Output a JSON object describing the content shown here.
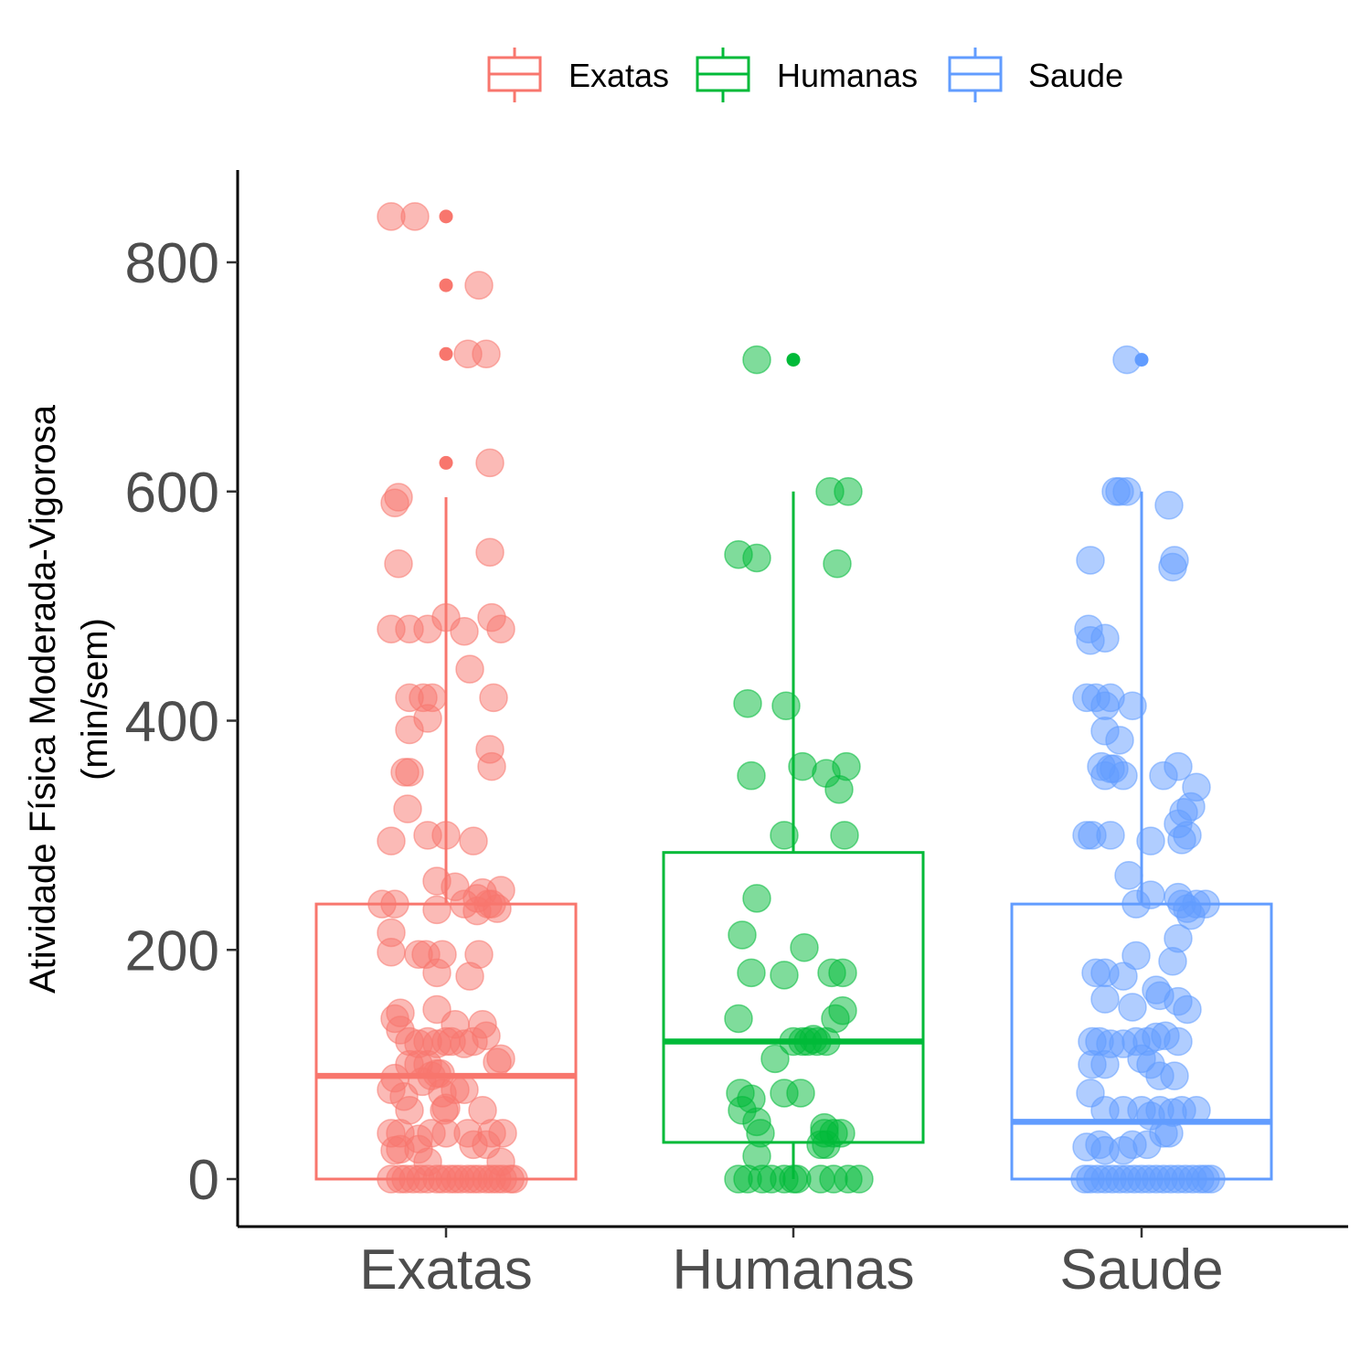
{
  "chart_data": {
    "type": "boxplot",
    "title": "",
    "xlabel": "",
    "ylabel_line1": "Atividade Física Moderada-Vigorosa",
    "ylabel_line2": "(min/sem)",
    "ylim": [
      -40,
      880
    ],
    "yticks": [
      0,
      200,
      400,
      600,
      800
    ],
    "categories": [
      "Exatas",
      "Humanas",
      "Saude"
    ],
    "legend": {
      "position": "top",
      "entries": [
        "Exatas",
        "Humanas",
        "Saude"
      ]
    },
    "grid": false,
    "colors": {
      "Exatas": "#F8766D",
      "Humanas": "#00BA38",
      "Saude": "#619CFF"
    },
    "boxes": [
      {
        "name": "Exatas",
        "min": 0,
        "q1": 0,
        "median": 90,
        "q3": 240,
        "max": 595,
        "outliers": [
          840,
          780,
          720,
          625
        ]
      },
      {
        "name": "Humanas",
        "min": 0,
        "q1": 32,
        "median": 120,
        "q3": 285,
        "max": 600,
        "outliers": [
          715
        ]
      },
      {
        "name": "Saude",
        "min": 0,
        "q1": 0,
        "median": 50,
        "q3": 240,
        "max": 600,
        "outliers": [
          715
        ]
      }
    ],
    "jitter": {
      "Exatas": [
        [
          -60,
          840
        ],
        [
          -34,
          840
        ],
        [
          36,
          780
        ],
        [
          44,
          720
        ],
        [
          24,
          720
        ],
        [
          48,
          625
        ],
        [
          -52,
          595
        ],
        [
          -56,
          590
        ],
        [
          -52,
          537
        ],
        [
          48,
          547
        ],
        [
          -60,
          480
        ],
        [
          -40,
          480
        ],
        [
          -20,
          480
        ],
        [
          0,
          490
        ],
        [
          20,
          478
        ],
        [
          50,
          490
        ],
        [
          60,
          480
        ],
        [
          -40,
          420
        ],
        [
          -25,
          420
        ],
        [
          -15,
          420
        ],
        [
          26,
          445
        ],
        [
          52,
          420
        ],
        [
          -40,
          392
        ],
        [
          -20,
          402
        ],
        [
          48,
          375
        ],
        [
          50,
          360
        ],
        [
          -40,
          355
        ],
        [
          -45,
          355
        ],
        [
          -42,
          323
        ],
        [
          -60,
          295
        ],
        [
          -20,
          300
        ],
        [
          0,
          300
        ],
        [
          30,
          295
        ],
        [
          -10,
          260
        ],
        [
          10,
          255
        ],
        [
          60,
          252
        ],
        [
          -56,
          240
        ],
        [
          -70,
          240
        ],
        [
          -10,
          235
        ],
        [
          20,
          240
        ],
        [
          34,
          245
        ],
        [
          46,
          240
        ],
        [
          56,
          236
        ],
        [
          40,
          250
        ],
        [
          50,
          240
        ],
        [
          34,
          234
        ],
        [
          -60,
          215
        ],
        [
          -60,
          198
        ],
        [
          -30,
          196
        ],
        [
          -22,
          196
        ],
        [
          -10,
          180
        ],
        [
          -4,
          196
        ],
        [
          36,
          196
        ],
        [
          26,
          177
        ],
        [
          -50,
          145
        ],
        [
          -10,
          148
        ],
        [
          -56,
          140
        ],
        [
          10,
          135
        ],
        [
          40,
          135
        ],
        [
          -50,
          130
        ],
        [
          -40,
          120
        ],
        [
          -30,
          118
        ],
        [
          -20,
          120
        ],
        [
          -10,
          118
        ],
        [
          0,
          120
        ],
        [
          6,
          120
        ],
        [
          20,
          118
        ],
        [
          -30,
          100
        ],
        [
          -40,
          100
        ],
        [
          -20,
          100
        ],
        [
          30,
          120
        ],
        [
          44,
          125
        ],
        [
          56,
          102
        ],
        [
          60,
          105
        ],
        [
          -10,
          92
        ],
        [
          -56,
          88
        ],
        [
          -60,
          78
        ],
        [
          -46,
          72
        ],
        [
          -26,
          85
        ],
        [
          -16,
          90
        ],
        [
          -6,
          92
        ],
        [
          -4,
          75
        ],
        [
          10,
          78
        ],
        [
          20,
          78
        ],
        [
          -40,
          60
        ],
        [
          -2,
          60
        ],
        [
          0,
          62
        ],
        [
          40,
          60
        ],
        [
          -60,
          40
        ],
        [
          -50,
          40
        ],
        [
          -30,
          35
        ],
        [
          -16,
          40
        ],
        [
          0,
          40
        ],
        [
          24,
          40
        ],
        [
          50,
          40
        ],
        [
          62,
          40
        ],
        [
          -50,
          26
        ],
        [
          -30,
          26
        ],
        [
          30,
          30
        ],
        [
          44,
          30
        ],
        [
          -56,
          25
        ],
        [
          60,
          15
        ],
        [
          -20,
          15
        ],
        [
          -60,
          0
        ],
        [
          -50,
          0
        ],
        [
          -44,
          0
        ],
        [
          -36,
          0
        ],
        [
          -28,
          0
        ],
        [
          -20,
          0
        ],
        [
          -10,
          0
        ],
        [
          -4,
          0
        ],
        [
          4,
          0
        ],
        [
          10,
          0
        ],
        [
          16,
          0
        ],
        [
          24,
          0
        ],
        [
          30,
          0
        ],
        [
          36,
          0
        ],
        [
          44,
          0
        ],
        [
          50,
          0
        ],
        [
          56,
          0
        ],
        [
          62,
          0
        ],
        [
          70,
          0
        ],
        [
          74,
          0
        ]
      ],
      "Humanas": [
        [
          -40,
          715
        ],
        [
          -60,
          545
        ],
        [
          60,
          600
        ],
        [
          48,
          537
        ],
        [
          40,
          600
        ],
        [
          -40,
          542
        ],
        [
          -50,
          415
        ],
        [
          -8,
          413
        ],
        [
          -46,
          352
        ],
        [
          10,
          360
        ],
        [
          36,
          354
        ],
        [
          50,
          340
        ],
        [
          58,
          360
        ],
        [
          -10,
          300
        ],
        [
          56,
          300
        ],
        [
          -40,
          245
        ],
        [
          -56,
          213
        ],
        [
          12,
          202
        ],
        [
          -46,
          180
        ],
        [
          -10,
          178
        ],
        [
          42,
          180
        ],
        [
          54,
          180
        ],
        [
          -60,
          140
        ],
        [
          46,
          140
        ],
        [
          54,
          147
        ],
        [
          -20,
          105
        ],
        [
          0,
          120
        ],
        [
          10,
          120
        ],
        [
          16,
          120
        ],
        [
          22,
          122
        ],
        [
          26,
          120
        ],
        [
          36,
          120
        ],
        [
          -58,
          75
        ],
        [
          -46,
          70
        ],
        [
          -10,
          75
        ],
        [
          8,
          75
        ],
        [
          -56,
          60
        ],
        [
          -40,
          50
        ],
        [
          -36,
          40
        ],
        [
          44,
          40
        ],
        [
          34,
          45
        ],
        [
          34,
          40
        ],
        [
          52,
          40
        ],
        [
          30,
          30
        ],
        [
          36,
          30
        ],
        [
          -40,
          20
        ],
        [
          -60,
          0
        ],
        [
          -50,
          0
        ],
        [
          -34,
          0
        ],
        [
          -24,
          0
        ],
        [
          -10,
          0
        ],
        [
          0,
          0
        ],
        [
          4,
          0
        ],
        [
          30,
          0
        ],
        [
          44,
          0
        ],
        [
          60,
          0
        ],
        [
          72,
          0
        ]
      ],
      "Saude": [
        [
          -16,
          715
        ],
        [
          -28,
          600
        ],
        [
          -24,
          600
        ],
        [
          -16,
          600
        ],
        [
          30,
          588
        ],
        [
          -56,
          540
        ],
        [
          36,
          540
        ],
        [
          34,
          534
        ],
        [
          -58,
          480
        ],
        [
          -56,
          470
        ],
        [
          -40,
          472
        ],
        [
          -60,
          420
        ],
        [
          -50,
          420
        ],
        [
          -40,
          413
        ],
        [
          -34,
          420
        ],
        [
          -10,
          413
        ],
        [
          -40,
          391
        ],
        [
          -24,
          383
        ],
        [
          -44,
          360
        ],
        [
          -40,
          352
        ],
        [
          -34,
          358
        ],
        [
          -30,
          358
        ],
        [
          -20,
          352
        ],
        [
          24,
          352
        ],
        [
          40,
          360
        ],
        [
          60,
          342
        ],
        [
          50,
          300
        ],
        [
          44,
          296
        ],
        [
          40,
          310
        ],
        [
          46,
          320
        ],
        [
          54,
          325
        ],
        [
          -60,
          300
        ],
        [
          -54,
          300
        ],
        [
          -34,
          300
        ],
        [
          10,
          295
        ],
        [
          -14,
          265
        ],
        [
          -6,
          240
        ],
        [
          10,
          248
        ],
        [
          40,
          246
        ],
        [
          44,
          240
        ],
        [
          50,
          236
        ],
        [
          60,
          240
        ],
        [
          70,
          240
        ],
        [
          54,
          230
        ],
        [
          40,
          210
        ],
        [
          34,
          190
        ],
        [
          -50,
          180
        ],
        [
          -40,
          180
        ],
        [
          -20,
          177
        ],
        [
          -6,
          195
        ],
        [
          16,
          165
        ],
        [
          20,
          160
        ],
        [
          40,
          155
        ],
        [
          50,
          148
        ],
        [
          -40,
          157
        ],
        [
          -10,
          150
        ],
        [
          -54,
          120
        ],
        [
          -46,
          120
        ],
        [
          -34,
          118
        ],
        [
          -20,
          118
        ],
        [
          -6,
          120
        ],
        [
          6,
          120
        ],
        [
          16,
          124
        ],
        [
          26,
          125
        ],
        [
          40,
          120
        ],
        [
          -54,
          100
        ],
        [
          -40,
          100
        ],
        [
          0,
          105
        ],
        [
          10,
          100
        ],
        [
          20,
          90
        ],
        [
          36,
          90
        ],
        [
          -56,
          75
        ],
        [
          -40,
          60
        ],
        [
          -20,
          60
        ],
        [
          0,
          60
        ],
        [
          10,
          55
        ],
        [
          20,
          60
        ],
        [
          34,
          58
        ],
        [
          44,
          60
        ],
        [
          60,
          60
        ],
        [
          -60,
          28
        ],
        [
          -46,
          30
        ],
        [
          -40,
          25
        ],
        [
          -20,
          25
        ],
        [
          -10,
          30
        ],
        [
          6,
          30
        ],
        [
          24,
          40
        ],
        [
          30,
          40
        ],
        [
          -62,
          0
        ],
        [
          -56,
          0
        ],
        [
          -48,
          0
        ],
        [
          -40,
          0
        ],
        [
          -32,
          0
        ],
        [
          -24,
          0
        ],
        [
          -16,
          0
        ],
        [
          -8,
          0
        ],
        [
          0,
          0
        ],
        [
          8,
          0
        ],
        [
          16,
          0
        ],
        [
          24,
          0
        ],
        [
          32,
          0
        ],
        [
          40,
          0
        ],
        [
          48,
          0
        ],
        [
          56,
          0
        ],
        [
          64,
          0
        ],
        [
          70,
          0
        ],
        [
          76,
          0
        ]
      ]
    }
  }
}
